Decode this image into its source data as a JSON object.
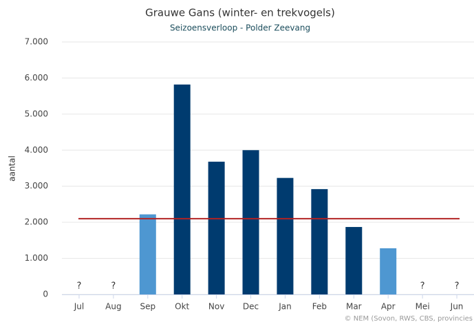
{
  "chart_data": {
    "type": "bar",
    "title": "Grauwe Gans (winter- en trekvogels)",
    "subtitle": "Seizoensverloop - Polder Zeevang",
    "y_label": "aantal",
    "credit": "© NEM (Sovon, RWS, CBS, provincies",
    "categories": [
      "Jul",
      "Aug",
      "Sep",
      "Okt",
      "Nov",
      "Dec",
      "Jan",
      "Feb",
      "Mar",
      "Apr",
      "Mei",
      "Jun"
    ],
    "values": [
      null,
      null,
      2220,
      5820,
      3680,
      4000,
      3230,
      2920,
      1870,
      1280,
      null,
      null
    ],
    "value_labels": [
      "?",
      "?",
      null,
      null,
      null,
      null,
      null,
      null,
      null,
      null,
      "?",
      "?"
    ],
    "colors": [
      "#4e97d1",
      "#4e97d1",
      "#4e97d1",
      "#003b6f",
      "#003b6f",
      "#003b6f",
      "#003b6f",
      "#003b6f",
      "#003b6f",
      "#4e97d1",
      "#4e97d1",
      "#4e97d1"
    ],
    "reference_line": {
      "value": 2100,
      "color": "#b22222"
    },
    "ylim": [
      0,
      7000
    ],
    "yticks": [
      {
        "value": 0,
        "label": "0"
      },
      {
        "value": 1000,
        "label": "1.000"
      },
      {
        "value": 2000,
        "label": "2.000"
      },
      {
        "value": 3000,
        "label": "3.000"
      },
      {
        "value": 4000,
        "label": "4.000"
      },
      {
        "value": 5000,
        "label": "5.000"
      },
      {
        "value": 6000,
        "label": "6.000"
      },
      {
        "value": 7000,
        "label": "7.000"
      }
    ],
    "grid": true
  }
}
